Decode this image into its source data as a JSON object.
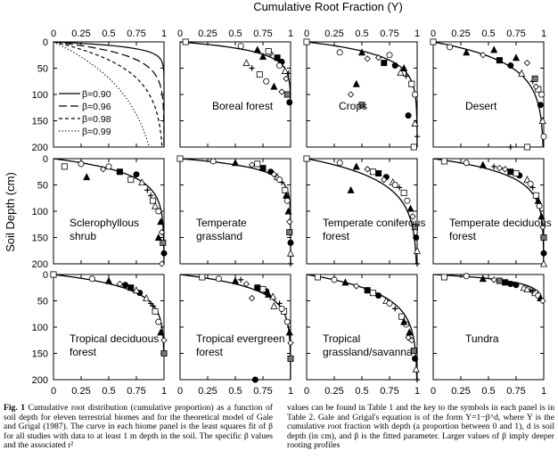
{
  "figure": {
    "top_axis_title": "Cumulative Root Fraction (Y)",
    "left_axis_title": "Soil Depth (cm)",
    "x_ticks": [
      "0",
      "0.25",
      "0.5",
      "0.75",
      "1"
    ],
    "y_ticks_row1": [
      "0",
      "50",
      "100",
      "150",
      "200"
    ],
    "y_ticks_row2": [
      "0",
      "50",
      "100",
      "150",
      "200"
    ],
    "y_ticks_row3": [
      "0",
      "50",
      "100",
      "150",
      "200"
    ]
  },
  "caption": {
    "fig_label": "Fig. 1",
    "left_text": "Cumulative root distribution (cumulative proportion) as a function of soil depth for eleven terrestrial biomes and for the theoretical model of Gale and Grigal (1987). The curve in each biome panel is the least squares fit of β for all studies with data to at least 1 m depth in the soil. The specific β values and the associated r²",
    "right_text": "values can be found in Table 1 and the key to the symbols in each panel is in Table 2. Gale and Grigal's equation is of the form Y=1−β^d, where Y is the cumulative root fraction with depth (a proportion between 0 and 1), d is soil depth (in cm), and β is the fitted parameter. Larger values of β imply deeper rooting profiles"
  },
  "chart_data": {
    "type": "line",
    "model": "Y = 1 - beta^d",
    "x_label": "Cumulative Root Fraction (Y)",
    "y_label": "Soil Depth (cm)",
    "xlim": [
      0,
      1
    ],
    "ylim": [
      200,
      0
    ],
    "panels": [
      {
        "name": "",
        "type": "line",
        "legend_placement": "lower-left",
        "series": [
          {
            "name": "β=0.90",
            "beta": 0.9,
            "style": "solid"
          },
          {
            "name": "β=0.96",
            "beta": 0.96,
            "style": "long-dash"
          },
          {
            "name": "β=0.98",
            "beta": 0.98,
            "style": "short-dash"
          },
          {
            "name": "β=0.99",
            "beta": 0.99,
            "style": "dotted"
          }
        ]
      },
      {
        "name": "Boreal forest",
        "type": "scatter",
        "beta": 0.943,
        "depth_max": 120,
        "points": [
          [
            0.05,
            0
          ],
          [
            0.55,
            8
          ],
          [
            0.7,
            15
          ],
          [
            0.82,
            22
          ],
          [
            0.88,
            30
          ],
          [
            0.92,
            38
          ],
          [
            0.6,
            40
          ],
          [
            0.65,
            50
          ],
          [
            0.72,
            62
          ],
          [
            0.78,
            75
          ],
          [
            0.85,
            85
          ],
          [
            0.92,
            95
          ],
          [
            0.97,
            100
          ],
          [
            0.99,
            115
          ],
          [
            0.95,
            55
          ],
          [
            0.98,
            60
          ],
          [
            0.8,
            18
          ],
          [
            0.9,
            45
          ],
          [
            0.75,
            28
          ],
          [
            0.96,
            70
          ]
        ]
      },
      {
        "name": "Crops",
        "type": "scatter",
        "beta": 0.961,
        "depth_max": 200,
        "points": [
          [
            0,
            0
          ],
          [
            0.3,
            20
          ],
          [
            0.5,
            20
          ],
          [
            0.55,
            32
          ],
          [
            0.7,
            40
          ],
          [
            0.8,
            45
          ],
          [
            0.85,
            58
          ],
          [
            0.9,
            65
          ],
          [
            0.95,
            80
          ],
          [
            0.98,
            100
          ],
          [
            0.45,
            80
          ],
          [
            0.4,
            100
          ],
          [
            0.5,
            120
          ],
          [
            0.92,
            140
          ],
          [
            0.98,
            155
          ],
          [
            1,
            180
          ],
          [
            0.97,
            200
          ],
          [
            0.75,
            25
          ],
          [
            0.88,
            50
          ],
          [
            0.65,
            30
          ]
        ]
      },
      {
        "name": "Desert",
        "type": "scatter",
        "beta": 0.975,
        "depth_max": 200,
        "points": [
          [
            0,
            0
          ],
          [
            0.15,
            10
          ],
          [
            0.3,
            20
          ],
          [
            0.45,
            25
          ],
          [
            0.6,
            35
          ],
          [
            0.7,
            45
          ],
          [
            0.8,
            60
          ],
          [
            0.9,
            75
          ],
          [
            0.95,
            90
          ],
          [
            0.98,
            100
          ],
          [
            0.75,
            30
          ],
          [
            0.85,
            40
          ],
          [
            0.92,
            70
          ],
          [
            0.97,
            120
          ],
          [
            0.99,
            150
          ],
          [
            0.7,
            200
          ],
          [
            0.85,
            200
          ],
          [
            1,
            180
          ],
          [
            0.55,
            15
          ],
          [
            0.93,
            85
          ]
        ]
      },
      {
        "name": "Sclerophyllous shrub",
        "type": "scatter",
        "beta": 0.964,
        "depth_max": 200,
        "points": [
          [
            0.1,
            15
          ],
          [
            0.25,
            10
          ],
          [
            0.3,
            35
          ],
          [
            0.45,
            20
          ],
          [
            0.6,
            25
          ],
          [
            0.75,
            30
          ],
          [
            0.8,
            45
          ],
          [
            0.85,
            60
          ],
          [
            0.9,
            80
          ],
          [
            0.95,
            100
          ],
          [
            0.97,
            120
          ],
          [
            0.98,
            140
          ],
          [
            0.99,
            160
          ],
          [
            1,
            180
          ],
          [
            0.92,
            90
          ],
          [
            0.88,
            70
          ],
          [
            0.7,
            40
          ],
          [
            0.5,
            15
          ],
          [
            0.95,
            150
          ],
          [
            0.98,
            200
          ]
        ]
      },
      {
        "name": "Temperate grassland",
        "type": "scatter",
        "beta": 0.943,
        "depth_max": 200,
        "points": [
          [
            0,
            0
          ],
          [
            0.3,
            5
          ],
          [
            0.5,
            8
          ],
          [
            0.65,
            12
          ],
          [
            0.75,
            18
          ],
          [
            0.82,
            25
          ],
          [
            0.88,
            35
          ],
          [
            0.92,
            45
          ],
          [
            0.95,
            60
          ],
          [
            0.97,
            80
          ],
          [
            0.98,
            100
          ],
          [
            0.99,
            120
          ],
          [
            0.99,
            140
          ],
          [
            1,
            160
          ],
          [
            1,
            180
          ],
          [
            1,
            200
          ],
          [
            0.7,
            10
          ],
          [
            0.9,
            40
          ],
          [
            0.96,
            70
          ],
          [
            0.85,
            30
          ]
        ]
      },
      {
        "name": "Temperate coniferous forest",
        "type": "scatter",
        "beta": 0.976,
        "depth_max": 200,
        "points": [
          [
            0,
            0
          ],
          [
            0.3,
            8
          ],
          [
            0.45,
            15
          ],
          [
            0.55,
            20
          ],
          [
            0.65,
            28
          ],
          [
            0.72,
            35
          ],
          [
            0.78,
            45
          ],
          [
            0.84,
            55
          ],
          [
            0.88,
            65
          ],
          [
            0.91,
            80
          ],
          [
            0.94,
            95
          ],
          [
            0.96,
            110
          ],
          [
            0.98,
            130
          ],
          [
            0.99,
            150
          ],
          [
            1,
            175
          ],
          [
            1,
            200
          ],
          [
            0.6,
            25
          ],
          [
            0.8,
            50
          ],
          [
            0.4,
            60
          ],
          [
            0.7,
            40
          ]
        ]
      },
      {
        "name": "Temperate deciduous forest",
        "type": "scatter",
        "beta": 0.966,
        "depth_max": 200,
        "points": [
          [
            0.1,
            5
          ],
          [
            0.3,
            8
          ],
          [
            0.45,
            12
          ],
          [
            0.6,
            18
          ],
          [
            0.7,
            25
          ],
          [
            0.78,
            32
          ],
          [
            0.85,
            40
          ],
          [
            0.9,
            55
          ],
          [
            0.93,
            70
          ],
          [
            0.96,
            90
          ],
          [
            0.98,
            110
          ],
          [
            0.99,
            130
          ],
          [
            1,
            150
          ],
          [
            1,
            180
          ],
          [
            1,
            200
          ],
          [
            0.55,
            15
          ],
          [
            0.75,
            28
          ],
          [
            0.88,
            48
          ],
          [
            0.95,
            80
          ],
          [
            0.65,
            20
          ]
        ]
      },
      {
        "name": "Tropical deciduous forest",
        "type": "scatter",
        "beta": 0.961,
        "depth_max": 150,
        "points": [
          [
            0,
            0
          ],
          [
            0.35,
            8
          ],
          [
            0.5,
            12
          ],
          [
            0.6,
            18
          ],
          [
            0.7,
            25
          ],
          [
            0.78,
            35
          ],
          [
            0.84,
            45
          ],
          [
            0.88,
            55
          ],
          [
            0.92,
            70
          ],
          [
            0.95,
            90
          ],
          [
            0.97,
            110
          ],
          [
            1,
            125
          ],
          [
            1,
            150
          ],
          [
            0.65,
            20
          ],
          [
            0.75,
            30
          ],
          [
            0.9,
            60
          ]
        ]
      },
      {
        "name": "Tropical evergreen forest",
        "type": "scatter",
        "beta": 0.962,
        "depth_max": 200,
        "points": [
          [
            0.2,
            5
          ],
          [
            0.35,
            8
          ],
          [
            0.5,
            12
          ],
          [
            0.6,
            18
          ],
          [
            0.7,
            25
          ],
          [
            0.78,
            32
          ],
          [
            0.84,
            42
          ],
          [
            0.9,
            55
          ],
          [
            0.94,
            70
          ],
          [
            0.97,
            90
          ],
          [
            0.99,
            110
          ],
          [
            1,
            130
          ],
          [
            1,
            160
          ],
          [
            0.68,
            200
          ],
          [
            0.85,
            60
          ],
          [
            0.55,
            10
          ],
          [
            0.75,
            28
          ],
          [
            0.92,
            65
          ],
          [
            0.8,
            38
          ],
          [
            0.65,
            45
          ]
        ]
      },
      {
        "name": "Tropical grassland/savanna",
        "type": "scatter",
        "beta": 0.972,
        "depth_max": 200,
        "points": [
          [
            0.1,
            5
          ],
          [
            0.25,
            10
          ],
          [
            0.35,
            15
          ],
          [
            0.45,
            22
          ],
          [
            0.55,
            30
          ],
          [
            0.65,
            40
          ],
          [
            0.72,
            50
          ],
          [
            0.8,
            65
          ],
          [
            0.86,
            80
          ],
          [
            0.9,
            95
          ],
          [
            0.93,
            110
          ],
          [
            0.95,
            125
          ],
          [
            0.97,
            145
          ],
          [
            0.98,
            160
          ],
          [
            0.99,
            180
          ],
          [
            1,
            200
          ],
          [
            0.6,
            35
          ],
          [
            0.75,
            55
          ],
          [
            0.88,
            90
          ],
          [
            0.92,
            120
          ]
        ]
      },
      {
        "name": "Tundra",
        "type": "scatter",
        "beta": 0.914,
        "depth_max": 55,
        "points": [
          [
            0.1,
            5
          ],
          [
            0.3,
            3
          ],
          [
            0.45,
            8
          ],
          [
            0.55,
            10
          ],
          [
            0.65,
            15
          ],
          [
            0.75,
            20
          ],
          [
            0.82,
            25
          ],
          [
            0.88,
            30
          ],
          [
            0.92,
            35
          ],
          [
            0.95,
            40
          ],
          [
            0.97,
            45
          ],
          [
            0.99,
            50
          ],
          [
            0.6,
            12
          ],
          [
            0.7,
            18
          ],
          [
            0.85,
            28
          ],
          [
            0.9,
            32
          ]
        ]
      }
    ]
  }
}
